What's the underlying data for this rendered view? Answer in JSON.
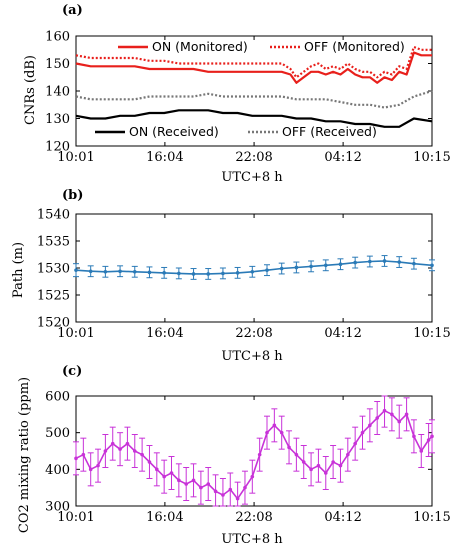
{
  "chart_data": [
    {
      "panel_label": "(a)",
      "type": "line",
      "xlabel": "UTC+8 h",
      "ylabel": "CNRs (dB)",
      "ylim": [
        120,
        160
      ],
      "yticks": [
        120,
        130,
        140,
        150,
        160
      ],
      "xlim": [
        0,
        24.23
      ],
      "xticks": [
        0,
        6.05,
        12.12,
        18.18,
        24.23
      ],
      "xticklabels": [
        "10:01",
        "16:04",
        "22:08",
        "04:12",
        "10:15"
      ],
      "legend": {
        "top": [
          "ON (Monitored)",
          "OFF (Monitored)"
        ],
        "bottom": [
          "ON (Received)",
          "OFF (Received)"
        ]
      },
      "series": [
        {
          "name": "ON (Monitored)",
          "color": "#e8201c",
          "style": "solid",
          "x": [
            0,
            1,
            2,
            3,
            4,
            5,
            6,
            7,
            8,
            9,
            10,
            11,
            12,
            13,
            14,
            14.6,
            15,
            15.5,
            16,
            16.5,
            17,
            17.5,
            18,
            18.5,
            19,
            19.5,
            20,
            20.5,
            21,
            21.5,
            22,
            22.5,
            23,
            23.5,
            24.23
          ],
          "y": [
            150,
            149,
            149,
            149,
            149,
            148,
            148,
            148,
            148,
            147,
            147,
            147,
            147,
            147,
            147,
            146,
            143,
            145,
            147,
            147,
            146,
            147,
            146,
            148,
            146,
            145,
            145,
            143,
            145,
            144,
            147,
            146,
            154,
            153,
            153
          ]
        },
        {
          "name": "OFF (Monitored)",
          "color": "#e8201c",
          "style": "dotted",
          "x": [
            0,
            1,
            2,
            3,
            4,
            5,
            6,
            7,
            8,
            9,
            10,
            11,
            12,
            13,
            14,
            14.6,
            15,
            15.5,
            16,
            16.5,
            17,
            17.5,
            18,
            18.5,
            19,
            19.5,
            20,
            20.5,
            21,
            21.5,
            22,
            22.5,
            23,
            23.5,
            24.23
          ],
          "y": [
            153,
            152,
            152,
            152,
            152,
            151,
            151,
            150,
            150,
            150,
            150,
            150,
            150,
            150,
            150,
            148,
            145,
            147,
            149,
            150,
            148,
            149,
            148,
            150,
            148,
            147,
            147,
            145,
            147,
            146,
            149,
            148,
            156,
            155,
            155
          ]
        },
        {
          "name": "ON (Received)",
          "color": "#000000",
          "style": "solid",
          "x": [
            0,
            1,
            2,
            3,
            4,
            5,
            6,
            7,
            8,
            9,
            10,
            11,
            12,
            13,
            14,
            15,
            16,
            17,
            18,
            19,
            20,
            21,
            22,
            23,
            24.23
          ],
          "y": [
            131,
            130,
            130,
            131,
            131,
            132,
            132,
            133,
            133,
            133,
            132,
            132,
            131,
            131,
            131,
            130,
            130,
            129,
            129,
            128,
            128,
            127,
            127,
            130,
            129
          ]
        },
        {
          "name": "OFF (Received)",
          "color": "#777777",
          "style": "dotted",
          "x": [
            0,
            1,
            2,
            3,
            4,
            5,
            6,
            7,
            8,
            9,
            10,
            11,
            12,
            13,
            14,
            15,
            16,
            17,
            18,
            19,
            20,
            21,
            22,
            23,
            24.23
          ],
          "y": [
            138,
            137,
            137,
            137,
            137,
            138,
            138,
            138,
            138,
            139,
            138,
            138,
            138,
            138,
            138,
            137,
            137,
            137,
            136,
            135,
            135,
            134,
            135,
            138,
            140
          ]
        }
      ]
    },
    {
      "panel_label": "(b)",
      "type": "line",
      "xlabel": "UTC+8 h",
      "ylabel": "Path (m)",
      "ylim": [
        1520,
        1540
      ],
      "yticks": [
        1520,
        1525,
        1530,
        1535,
        1540
      ],
      "xlim": [
        0,
        24.23
      ],
      "xticks": [
        0,
        6.05,
        12.12,
        18.18,
        24.23
      ],
      "xticklabels": [
        "10:01",
        "16:04",
        "22:08",
        "04:12",
        "10:15"
      ],
      "series": [
        {
          "name": "",
          "color": "#2a7ab7",
          "x": [
            0,
            1,
            2,
            3,
            4,
            5,
            6,
            7,
            8,
            9,
            10,
            11,
            12,
            13,
            14,
            15,
            16,
            17,
            18,
            19,
            20,
            21,
            22,
            23,
            24.23
          ],
          "y": [
            1529.6,
            1529.4,
            1529.3,
            1529.4,
            1529.3,
            1529.2,
            1529.1,
            1529.0,
            1528.9,
            1528.9,
            1529.0,
            1529.1,
            1529.3,
            1529.6,
            1529.9,
            1530.1,
            1530.3,
            1530.5,
            1530.7,
            1531.0,
            1531.2,
            1531.3,
            1531.1,
            1530.8,
            1530.5
          ],
          "err": [
            1.2,
            1.0,
            1.0,
            1.0,
            1.0,
            1.0,
            1.0,
            1.0,
            1.0,
            1.0,
            1.0,
            1.0,
            1.0,
            1.0,
            1.0,
            1.0,
            1.0,
            1.0,
            1.0,
            1.0,
            1.0,
            1.0,
            1.0,
            1.0,
            1.0
          ]
        }
      ]
    },
    {
      "panel_label": "(c)",
      "type": "line",
      "xlabel": "UTC+8 h",
      "ylabel": "CO2 mixing ratio (ppm)",
      "ylim": [
        300,
        600
      ],
      "yticks": [
        300,
        400,
        500,
        600
      ],
      "xlim": [
        0,
        24.23
      ],
      "xticks": [
        0,
        6.05,
        12.12,
        18.18,
        24.23
      ],
      "xticklabels": [
        "10:01",
        "16:04",
        "22:08",
        "04:12",
        "10:15"
      ],
      "series": [
        {
          "name": "",
          "color": "#c832d8",
          "x": [
            0,
            0.5,
            1,
            1.5,
            2,
            2.5,
            3,
            3.5,
            4,
            4.5,
            5,
            5.5,
            6,
            6.5,
            7,
            7.5,
            8,
            8.5,
            9,
            9.5,
            10,
            10.5,
            11,
            11.5,
            12,
            12.5,
            13,
            13.5,
            14,
            14.5,
            15,
            15.5,
            16,
            16.5,
            17,
            17.5,
            18,
            18.5,
            19,
            19.5,
            20,
            20.5,
            21,
            21.5,
            22,
            22.5,
            23,
            23.5,
            24,
            24.23
          ],
          "y": [
            430,
            440,
            400,
            410,
            450,
            470,
            455,
            470,
            450,
            440,
            420,
            400,
            380,
            390,
            370,
            360,
            370,
            350,
            360,
            340,
            330,
            345,
            320,
            350,
            380,
            440,
            500,
            520,
            500,
            460,
            440,
            420,
            400,
            410,
            390,
            420,
            410,
            440,
            470,
            500,
            520,
            540,
            560,
            550,
            530,
            550,
            490,
            450,
            480,
            490
          ],
          "err": 45
        }
      ]
    }
  ]
}
